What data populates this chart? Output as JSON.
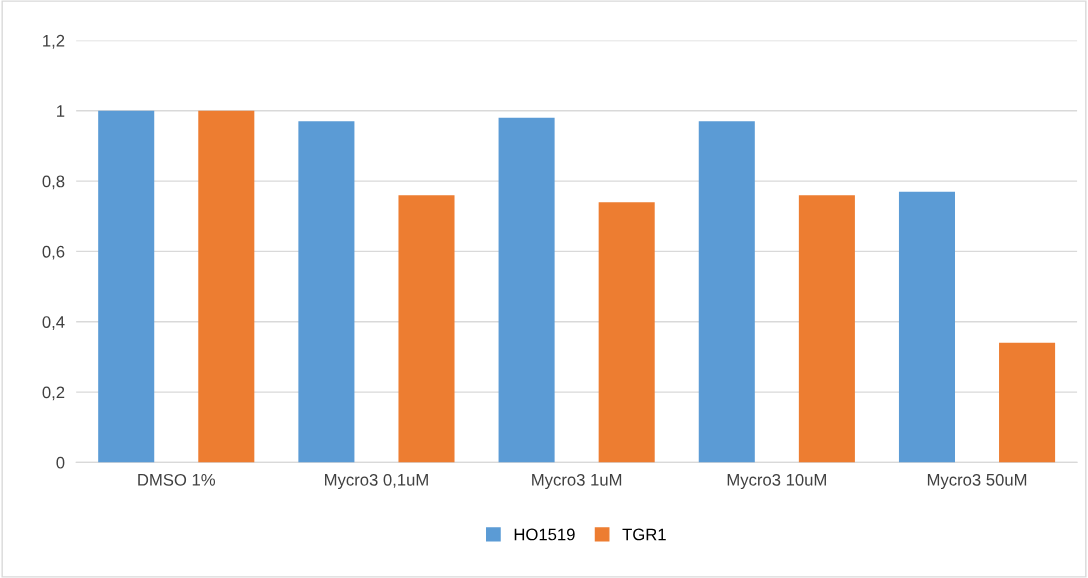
{
  "chart_data": {
    "type": "bar",
    "categories": [
      "DMSO 1%",
      "Mycro3 0,1uM",
      "Mycro3 1uM",
      "Mycro3 10uM",
      "Mycro3 50uM"
    ],
    "series": [
      {
        "name": "HO1519",
        "color": "#5b9bd5",
        "values": [
          1.0,
          0.97,
          0.98,
          0.97,
          0.77
        ]
      },
      {
        "name": "TGR1",
        "color": "#ed7d31",
        "values": [
          1.0,
          0.76,
          0.74,
          0.76,
          0.34
        ]
      }
    ],
    "ylim": [
      0,
      1.2
    ],
    "yticks": [
      0,
      {
        "value": 0.2,
        "label": "0,2"
      },
      {
        "value": 0.4,
        "label": "0,4"
      },
      {
        "value": 0.6,
        "label": "0,6"
      },
      {
        "value": 0.8,
        "label": "0,8"
      },
      1,
      {
        "value": 1.2,
        "label": "1,2"
      }
    ],
    "grid": "y",
    "legend": "bottom"
  }
}
